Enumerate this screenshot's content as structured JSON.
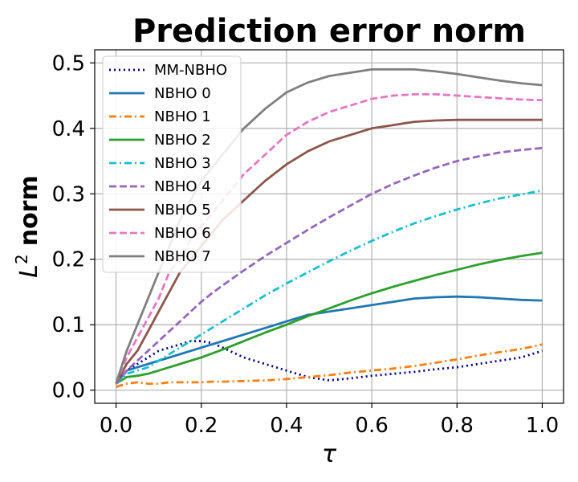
{
  "chart_data": {
    "type": "line",
    "title": "Prediction error norm",
    "xlabel": "τ",
    "ylabel": "L² norm",
    "ylabel_base": "L",
    "ylabel_sup": "2",
    "ylabel_rest": "norm",
    "xlim": [
      -0.05,
      1.05
    ],
    "ylim": [
      -0.02,
      0.52
    ],
    "xticks": [
      0.0,
      0.2,
      0.4,
      0.6,
      0.8,
      1.0
    ],
    "xtick_labels": [
      "0.0",
      "0.2",
      "0.4",
      "0.6",
      "0.8",
      "1.0"
    ],
    "yticks": [
      0.0,
      0.1,
      0.2,
      0.3,
      0.4,
      0.5
    ],
    "ytick_labels": [
      "0.0",
      "0.1",
      "0.2",
      "0.3",
      "0.4",
      "0.5"
    ],
    "grid": true,
    "legend_position": "top-left",
    "x": [
      0.0,
      0.025,
      0.05,
      0.075,
      0.1,
      0.125,
      0.15,
      0.175,
      0.2,
      0.225,
      0.25,
      0.3,
      0.35,
      0.4,
      0.45,
      0.5,
      0.55,
      0.6,
      0.65,
      0.7,
      0.75,
      0.8,
      0.85,
      0.9,
      0.95,
      1.0
    ],
    "series": [
      {
        "name": "MM-NBHO",
        "color": "#000080",
        "dash": "dot",
        "values": [
          0.01,
          0.03,
          0.04,
          0.05,
          0.06,
          0.065,
          0.07,
          0.075,
          0.075,
          0.072,
          0.065,
          0.05,
          0.04,
          0.03,
          0.02,
          0.015,
          0.018,
          0.022,
          0.025,
          0.028,
          0.032,
          0.035,
          0.04,
          0.045,
          0.05,
          0.06
        ]
      },
      {
        "name": "NBHO 0",
        "color": "#1f77b4",
        "dash": "solid",
        "values": [
          0.01,
          0.03,
          0.035,
          0.04,
          0.045,
          0.05,
          0.055,
          0.06,
          0.065,
          0.07,
          0.075,
          0.085,
          0.095,
          0.105,
          0.115,
          0.12,
          0.125,
          0.13,
          0.135,
          0.14,
          0.142,
          0.143,
          0.142,
          0.14,
          0.138,
          0.137
        ]
      },
      {
        "name": "NBHO 1",
        "color": "#ff7f0e",
        "dash": "dashdot",
        "values": [
          0.005,
          0.01,
          0.012,
          0.01,
          0.01,
          0.012,
          0.012,
          0.012,
          0.012,
          0.013,
          0.013,
          0.014,
          0.015,
          0.017,
          0.02,
          0.023,
          0.027,
          0.03,
          0.033,
          0.037,
          0.042,
          0.047,
          0.053,
          0.058,
          0.063,
          0.07
        ]
      },
      {
        "name": "NBHO 2",
        "color": "#2ca02c",
        "dash": "solid",
        "values": [
          0.01,
          0.02,
          0.022,
          0.025,
          0.03,
          0.035,
          0.04,
          0.045,
          0.05,
          0.056,
          0.062,
          0.075,
          0.088,
          0.1,
          0.113,
          0.125,
          0.137,
          0.148,
          0.158,
          0.167,
          0.176,
          0.184,
          0.192,
          0.199,
          0.205,
          0.21
        ]
      },
      {
        "name": "NBHO 3",
        "color": "#17becf",
        "dash": "dashdot",
        "values": [
          0.01,
          0.025,
          0.03,
          0.035,
          0.045,
          0.055,
          0.065,
          0.075,
          0.085,
          0.095,
          0.105,
          0.125,
          0.145,
          0.163,
          0.18,
          0.197,
          0.213,
          0.228,
          0.242,
          0.255,
          0.266,
          0.276,
          0.285,
          0.293,
          0.299,
          0.305
        ]
      },
      {
        "name": "NBHO 4",
        "color": "#9467bd",
        "dash": "dash",
        "values": [
          0.01,
          0.03,
          0.045,
          0.06,
          0.075,
          0.09,
          0.105,
          0.12,
          0.135,
          0.148,
          0.16,
          0.183,
          0.205,
          0.225,
          0.245,
          0.264,
          0.282,
          0.3,
          0.315,
          0.328,
          0.34,
          0.35,
          0.357,
          0.363,
          0.367,
          0.37
        ]
      },
      {
        "name": "NBHO 5",
        "color": "#8c564b",
        "dash": "solid",
        "values": [
          0.01,
          0.04,
          0.06,
          0.09,
          0.12,
          0.15,
          0.18,
          0.2,
          0.22,
          0.24,
          0.26,
          0.29,
          0.32,
          0.345,
          0.365,
          0.38,
          0.39,
          0.4,
          0.405,
          0.41,
          0.412,
          0.413,
          0.413,
          0.413,
          0.413,
          0.413
        ]
      },
      {
        "name": "NBHO 6",
        "color": "#e377c2",
        "dash": "dash",
        "values": [
          0.01,
          0.05,
          0.08,
          0.11,
          0.14,
          0.18,
          0.2,
          0.23,
          0.25,
          0.27,
          0.29,
          0.33,
          0.36,
          0.39,
          0.41,
          0.425,
          0.435,
          0.445,
          0.45,
          0.452,
          0.452,
          0.45,
          0.448,
          0.446,
          0.444,
          0.443
        ]
      },
      {
        "name": "NBHO 7",
        "color": "#7f7f7f",
        "dash": "solid",
        "values": [
          0.01,
          0.06,
          0.1,
          0.14,
          0.18,
          0.22,
          0.26,
          0.29,
          0.32,
          0.34,
          0.36,
          0.4,
          0.43,
          0.455,
          0.47,
          0.48,
          0.485,
          0.49,
          0.49,
          0.49,
          0.487,
          0.483,
          0.478,
          0.473,
          0.469,
          0.466
        ]
      }
    ]
  }
}
